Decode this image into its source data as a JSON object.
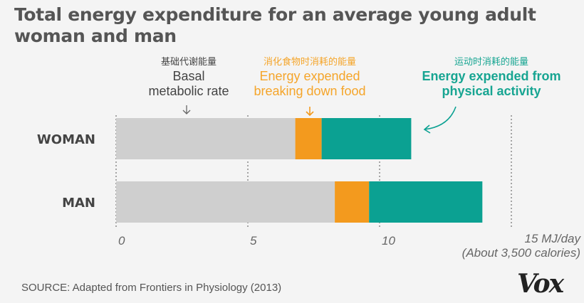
{
  "chart_data": {
    "type": "bar",
    "stacked": true,
    "orientation": "horizontal",
    "title": "Total energy expenditure for an average young adult woman and man",
    "categories": [
      "WOMAN",
      "MAN"
    ],
    "series": [
      {
        "name": "Basal metabolic rate",
        "name_zh": "基础代谢能量",
        "color": "#cfcfcf",
        "values": [
          6.8,
          8.3
        ]
      },
      {
        "name": "Energy expended breaking down food",
        "name_zh": "消化食物时消耗的能量",
        "color": "#f39a1e",
        "values": [
          1.0,
          1.3
        ]
      },
      {
        "name": "Energy expended from physical activity",
        "name_zh": "运动时消耗的能量",
        "color": "#0ba192",
        "values": [
          3.4,
          4.3
        ]
      }
    ],
    "xlim": [
      0,
      15
    ],
    "xticks": [
      0,
      5,
      10,
      15
    ],
    "xlabel": "MJ/day",
    "xlabel_note": "(About 3,500 calories)",
    "grid": "vertical dashed"
  },
  "labels": {
    "basal_zh": "基础代谢能量",
    "basal_en_1": "Basal",
    "basal_en_2": "metabolic rate",
    "food_zh": "消化食物时消耗的能量",
    "food_en_1": "Energy expended",
    "food_en_2": "breaking down food",
    "activity_zh": "运动时消耗的能量",
    "activity_en_1": "Energy expended from",
    "activity_en_2": "physical activity"
  },
  "source": "SOURCE: Adapted from Frontiers in Physiology (2013)",
  "logo_text": "Vox"
}
